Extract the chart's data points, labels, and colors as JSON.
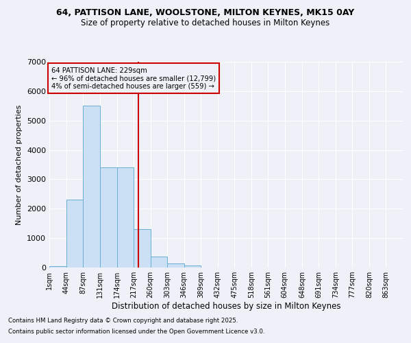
{
  "title1": "64, PATTISON LANE, WOOLSTONE, MILTON KEYNES, MK15 0AY",
  "title2": "Size of property relative to detached houses in Milton Keynes",
  "xlabel": "Distribution of detached houses by size in Milton Keynes",
  "ylabel": "Number of detached properties",
  "annotation_title": "64 PATTISON LANE: 229sqm",
  "annotation_left": "← 96% of detached houses are smaller (12,799)",
  "annotation_right": "4% of semi-detached houses are larger (559) →",
  "property_size": 229,
  "bins": [
    1,
    44,
    87,
    131,
    174,
    217,
    260,
    303,
    346,
    389,
    432,
    475,
    518,
    561,
    604,
    648,
    691,
    734,
    777,
    820,
    863
  ],
  "bar_heights": [
    50,
    2300,
    5500,
    3400,
    3400,
    1300,
    380,
    130,
    60,
    10,
    5,
    2,
    1,
    0,
    0,
    0,
    0,
    0,
    0,
    0
  ],
  "bar_color": "#cce0f5",
  "bar_edge_color": "#6baed6",
  "vline_color": "#cc0000",
  "annotation_box_color": "#cc0000",
  "background_color": "#eef2f8",
  "grid_color": "#ffffff",
  "ylim": [
    0,
    7000
  ],
  "yticks": [
    0,
    1000,
    2000,
    3000,
    4000,
    5000,
    6000,
    7000
  ],
  "footer1": "Contains HM Land Registry data © Crown copyright and database right 2025.",
  "footer2": "Contains public sector information licensed under the Open Government Licence v3.0."
}
